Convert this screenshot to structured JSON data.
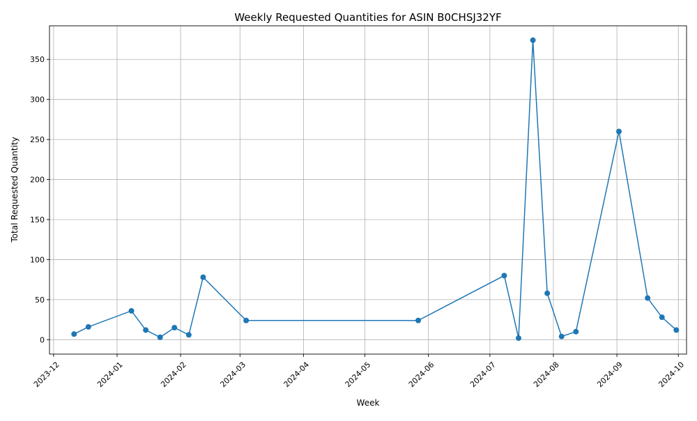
{
  "chart_data": {
    "type": "line",
    "title": "Weekly Requested Quantities for ASIN B0CHSJ32YF",
    "xlabel": "Week",
    "ylabel": "Total Requested Quantity",
    "x_axis": {
      "scale": "date",
      "range": [
        "2023-11-29",
        "2024-10-05"
      ],
      "ticks": [
        "2023-12-01",
        "2024-01-01",
        "2024-02-01",
        "2024-03-01",
        "2024-04-01",
        "2024-05-01",
        "2024-06-01",
        "2024-07-01",
        "2024-08-01",
        "2024-09-01",
        "2024-10-01"
      ],
      "tick_labels": [
        "2023-12",
        "2024-01",
        "2024-02",
        "2024-03",
        "2024-04",
        "2024-05",
        "2024-06",
        "2024-07",
        "2024-08",
        "2024-09",
        "2024-10"
      ],
      "tick_label_rotation": 45
    },
    "y_axis": {
      "range": [
        -18,
        392
      ],
      "ticks": [
        0,
        50,
        100,
        150,
        200,
        250,
        300,
        350
      ],
      "tick_labels": [
        "0",
        "50",
        "100",
        "150",
        "200",
        "250",
        "300",
        "350"
      ]
    },
    "grid": true,
    "series": [
      {
        "color": "#1f77b4",
        "marker": "circle",
        "x": [
          "2023-12-11",
          "2023-12-18",
          "2024-01-08",
          "2024-01-15",
          "2024-01-22",
          "2024-01-29",
          "2024-02-05",
          "2024-02-12",
          "2024-03-04",
          "2024-05-27",
          "2024-07-08",
          "2024-07-15",
          "2024-07-22",
          "2024-07-29",
          "2024-08-05",
          "2024-08-12",
          "2024-09-02",
          "2024-09-16",
          "2024-09-23",
          "2024-09-30"
        ],
        "y": [
          7,
          16,
          36,
          12,
          3,
          15,
          6,
          78,
          24,
          24,
          80,
          2,
          374,
          58,
          4,
          10,
          260,
          52,
          28,
          12
        ]
      }
    ]
  }
}
